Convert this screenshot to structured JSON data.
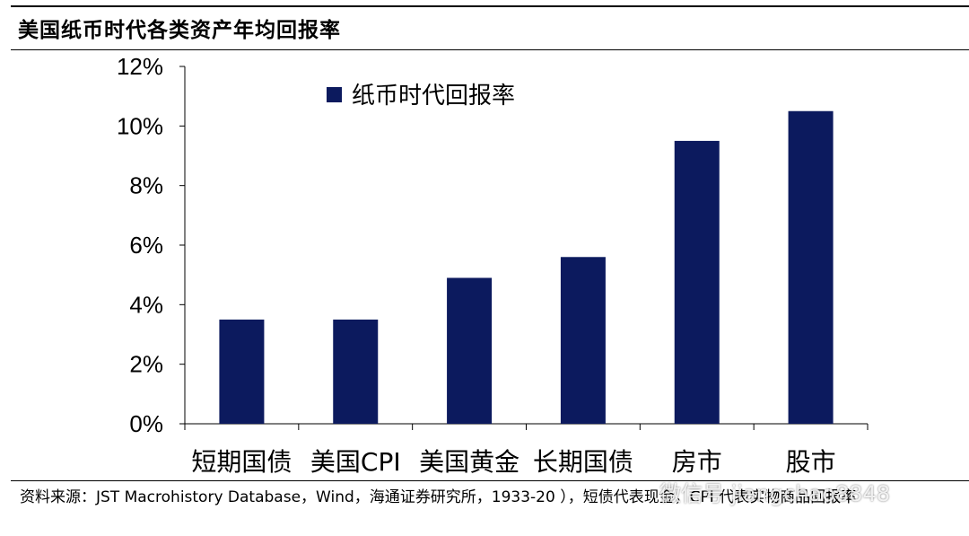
{
  "title": "美国纸币时代各类资产年均回报率",
  "chart_data": {
    "type": "bar",
    "categories": [
      "短期国债",
      "美国CPI",
      "美国黄金",
      "长期国债",
      "房市",
      "股市"
    ],
    "series": [
      {
        "name": "纸币时代回报率",
        "values": [
          3.5,
          3.5,
          4.9,
          5.6,
          9.5,
          10.5
        ]
      }
    ],
    "ylim": [
      0,
      12
    ],
    "yticks": [
      "0%",
      "2%",
      "4%",
      "6%",
      "8%",
      "10%",
      "12%"
    ],
    "xlabel": "",
    "ylabel": "",
    "legend_position": "top",
    "grid": false
  },
  "source": "资料来源：JST Macrohistory Database，Wind，海通证券研究所，1933-20 ），短债代表现金，CPI 代表实物商品回报率",
  "watermark": "微信号 jiangchao8848",
  "colors": {
    "bar": "#0c1a5e"
  }
}
